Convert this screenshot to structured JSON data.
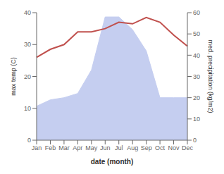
{
  "chart_data": {
    "type": "line",
    "xlabel": "date (month)",
    "ylabel": "max temp (C)",
    "y2label": "med. precipitation (kg/m2)",
    "categories": [
      "Jan",
      "Feb",
      "Mar",
      "Apr",
      "May",
      "Jun",
      "Jul",
      "Aug",
      "Sep",
      "Oct",
      "Nov",
      "Dec"
    ],
    "series": [
      {
        "type": "area",
        "axis": "y2",
        "color": "#c5cef0",
        "values": [
          16,
          19,
          20,
          22,
          33,
          58,
          58,
          52,
          42,
          20,
          20,
          20
        ]
      },
      {
        "type": "line",
        "color": "#c0504d",
        "values": [
          26,
          28.5,
          30,
          34,
          34,
          35,
          37,
          36.5,
          38.5,
          37,
          33,
          29.5
        ]
      }
    ],
    "ylim": [
      0,
      40
    ],
    "yticks": [
      0,
      10,
      20,
      30,
      40
    ],
    "y2lim": [
      0,
      60
    ],
    "y2ticks": [
      0,
      10,
      20,
      30,
      40,
      50,
      60
    ],
    "grid": false
  }
}
